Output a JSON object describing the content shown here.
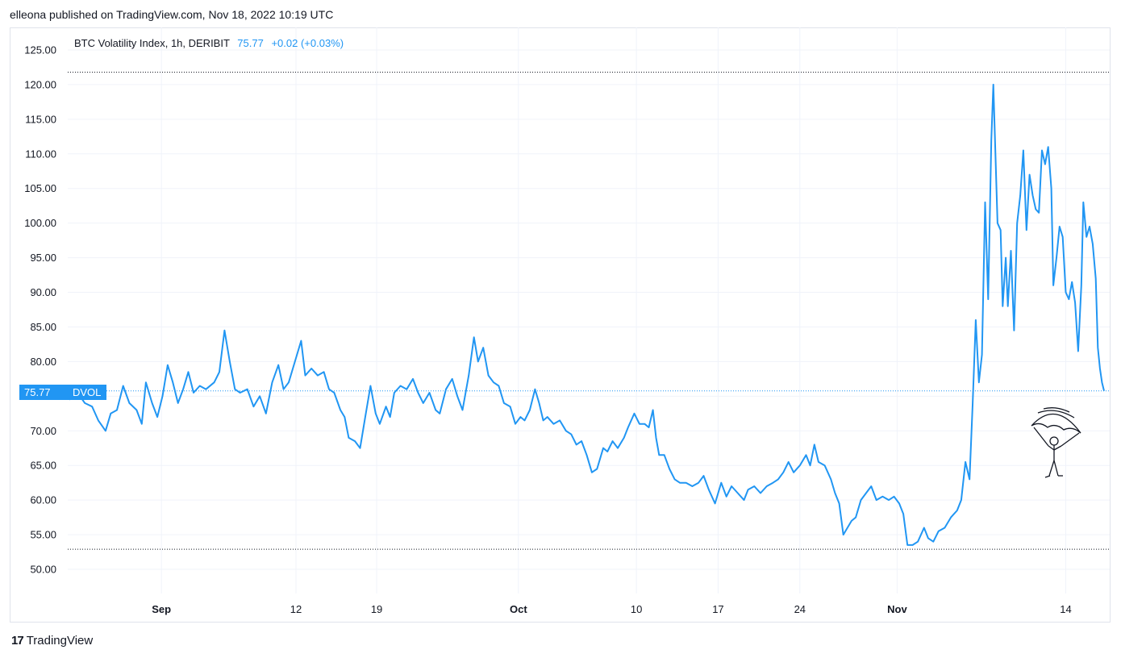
{
  "header": {
    "publisher_text": "elleona published on TradingView.com, Nov 18, 2022 10:19 UTC"
  },
  "legend": {
    "title": "BTC Volatility Index, 1h, DERIBIT",
    "last": "75.77",
    "change": "+0.02 (+0.03%)"
  },
  "price_tag": {
    "value": "75.77",
    "symbol": "DVOL"
  },
  "footer": {
    "brand": "TradingView",
    "logo_text": "17"
  },
  "colors": {
    "line": "#2196f3",
    "grid": "#f0f3fa",
    "text": "#131722"
  },
  "chart_data": {
    "type": "line",
    "title": "BTC Volatility Index, 1h, DERIBIT",
    "y_ticks": [
      "125.00",
      "120.00",
      "115.00",
      "110.00",
      "105.00",
      "100.00",
      "95.00",
      "90.00",
      "85.00",
      "80.00",
      "75.00",
      "70.00",
      "65.00",
      "60.00",
      "55.00",
      "50.00"
    ],
    "x_ticks": [
      {
        "label": "Sep",
        "pos": 0.089,
        "bold": true
      },
      {
        "label": "12",
        "pos": 0.219,
        "bold": false
      },
      {
        "label": "19",
        "pos": 0.297,
        "bold": false
      },
      {
        "label": "Oct",
        "pos": 0.434,
        "bold": true
      },
      {
        "label": "10",
        "pos": 0.548,
        "bold": false
      },
      {
        "label": "17",
        "pos": 0.627,
        "bold": false
      },
      {
        "label": "24",
        "pos": 0.706,
        "bold": false
      },
      {
        "label": "Nov",
        "pos": 0.8,
        "bold": true
      },
      {
        "label": "14",
        "pos": 0.963,
        "bold": false
      }
    ],
    "ylim": [
      50,
      125
    ],
    "high_line": 121.8,
    "low_line": 52.9,
    "last_value": 75.77,
    "series": [
      {
        "values": [
          [
            0.0,
            74.5
          ],
          [
            0.008,
            75.5
          ],
          [
            0.015,
            74.0
          ],
          [
            0.022,
            73.5
          ],
          [
            0.028,
            71.5
          ],
          [
            0.035,
            70.0
          ],
          [
            0.04,
            72.5
          ],
          [
            0.046,
            73.0
          ],
          [
            0.052,
            76.5
          ],
          [
            0.058,
            74.0
          ],
          [
            0.065,
            73.0
          ],
          [
            0.07,
            71.0
          ],
          [
            0.074,
            77.0
          ],
          [
            0.08,
            74.0
          ],
          [
            0.085,
            72.0
          ],
          [
            0.09,
            75.0
          ],
          [
            0.095,
            79.5
          ],
          [
            0.1,
            77.0
          ],
          [
            0.105,
            74.0
          ],
          [
            0.11,
            76.0
          ],
          [
            0.115,
            78.5
          ],
          [
            0.12,
            75.5
          ],
          [
            0.126,
            76.5
          ],
          [
            0.132,
            76.0
          ],
          [
            0.14,
            77.0
          ],
          [
            0.145,
            78.5
          ],
          [
            0.15,
            84.5
          ],
          [
            0.155,
            80.0
          ],
          [
            0.16,
            76.0
          ],
          [
            0.165,
            75.5
          ],
          [
            0.172,
            76.0
          ],
          [
            0.178,
            73.5
          ],
          [
            0.184,
            75.0
          ],
          [
            0.19,
            72.5
          ],
          [
            0.196,
            77.0
          ],
          [
            0.202,
            79.5
          ],
          [
            0.207,
            76.0
          ],
          [
            0.212,
            77.0
          ],
          [
            0.218,
            80.0
          ],
          [
            0.224,
            83.0
          ],
          [
            0.228,
            78.0
          ],
          [
            0.234,
            79.0
          ],
          [
            0.24,
            78.0
          ],
          [
            0.246,
            78.5
          ],
          [
            0.251,
            76.0
          ],
          [
            0.256,
            75.5
          ],
          [
            0.262,
            73.0
          ],
          [
            0.266,
            72.0
          ],
          [
            0.27,
            69.0
          ],
          [
            0.276,
            68.5
          ],
          [
            0.281,
            67.5
          ],
          [
            0.286,
            72.0
          ],
          [
            0.291,
            76.5
          ],
          [
            0.296,
            72.5
          ],
          [
            0.3,
            71.0
          ],
          [
            0.306,
            73.5
          ],
          [
            0.31,
            72.0
          ],
          [
            0.314,
            75.5
          ],
          [
            0.32,
            76.5
          ],
          [
            0.326,
            76.0
          ],
          [
            0.332,
            77.5
          ],
          [
            0.337,
            75.5
          ],
          [
            0.342,
            74.0
          ],
          [
            0.348,
            75.5
          ],
          [
            0.354,
            73.0
          ],
          [
            0.358,
            72.5
          ],
          [
            0.364,
            76.0
          ],
          [
            0.37,
            77.5
          ],
          [
            0.375,
            75.0
          ],
          [
            0.38,
            73.0
          ],
          [
            0.386,
            78.0
          ],
          [
            0.391,
            83.5
          ],
          [
            0.395,
            80.0
          ],
          [
            0.4,
            82.0
          ],
          [
            0.405,
            78.0
          ],
          [
            0.41,
            77.0
          ],
          [
            0.415,
            76.5
          ],
          [
            0.42,
            74.0
          ],
          [
            0.426,
            73.5
          ],
          [
            0.431,
            71.0
          ],
          [
            0.436,
            72.0
          ],
          [
            0.44,
            71.5
          ],
          [
            0.445,
            73.0
          ],
          [
            0.45,
            76.0
          ],
          [
            0.454,
            74.0
          ],
          [
            0.458,
            71.5
          ],
          [
            0.462,
            72.0
          ],
          [
            0.468,
            71.0
          ],
          [
            0.474,
            71.5
          ],
          [
            0.48,
            70.0
          ],
          [
            0.485,
            69.5
          ],
          [
            0.49,
            68.0
          ],
          [
            0.495,
            68.5
          ],
          [
            0.5,
            66.5
          ],
          [
            0.505,
            64.0
          ],
          [
            0.51,
            64.5
          ],
          [
            0.516,
            67.5
          ],
          [
            0.52,
            67.0
          ],
          [
            0.525,
            68.5
          ],
          [
            0.53,
            67.5
          ],
          [
            0.536,
            69.0
          ],
          [
            0.54,
            70.5
          ],
          [
            0.546,
            72.5
          ],
          [
            0.551,
            71.0
          ],
          [
            0.556,
            71.0
          ],
          [
            0.56,
            70.5
          ],
          [
            0.564,
            73.0
          ],
          [
            0.567,
            69.0
          ],
          [
            0.57,
            66.5
          ],
          [
            0.575,
            66.5
          ],
          [
            0.58,
            64.5
          ],
          [
            0.585,
            63.0
          ],
          [
            0.59,
            62.5
          ],
          [
            0.596,
            62.5
          ],
          [
            0.602,
            62.0
          ],
          [
            0.608,
            62.5
          ],
          [
            0.613,
            63.5
          ],
          [
            0.618,
            61.5
          ],
          [
            0.624,
            59.5
          ],
          [
            0.63,
            62.5
          ],
          [
            0.635,
            60.5
          ],
          [
            0.64,
            62.0
          ],
          [
            0.646,
            61.0
          ],
          [
            0.652,
            60.0
          ],
          [
            0.656,
            61.5
          ],
          [
            0.662,
            62.0
          ],
          [
            0.668,
            61.0
          ],
          [
            0.674,
            62.0
          ],
          [
            0.68,
            62.5
          ],
          [
            0.685,
            63.0
          ],
          [
            0.69,
            64.0
          ],
          [
            0.695,
            65.5
          ],
          [
            0.7,
            64.0
          ],
          [
            0.706,
            65.0
          ],
          [
            0.712,
            66.5
          ],
          [
            0.716,
            65.0
          ],
          [
            0.72,
            68.0
          ],
          [
            0.724,
            65.5
          ],
          [
            0.73,
            65.0
          ],
          [
            0.736,
            63.0
          ],
          [
            0.74,
            61.0
          ],
          [
            0.744,
            59.5
          ],
          [
            0.748,
            55.0
          ],
          [
            0.752,
            56.0
          ],
          [
            0.756,
            57.0
          ],
          [
            0.76,
            57.5
          ],
          [
            0.765,
            60.0
          ],
          [
            0.77,
            61.0
          ],
          [
            0.775,
            62.0
          ],
          [
            0.78,
            60.0
          ],
          [
            0.786,
            60.5
          ],
          [
            0.792,
            60.0
          ],
          [
            0.797,
            60.5
          ],
          [
            0.802,
            59.5
          ],
          [
            0.806,
            58.0
          ],
          [
            0.81,
            53.5
          ],
          [
            0.815,
            53.5
          ],
          [
            0.82,
            54.0
          ],
          [
            0.826,
            56.0
          ],
          [
            0.83,
            54.5
          ],
          [
            0.835,
            54.0
          ],
          [
            0.84,
            55.5
          ],
          [
            0.846,
            56.0
          ],
          [
            0.852,
            57.5
          ],
          [
            0.858,
            58.5
          ],
          [
            0.862,
            60.0
          ],
          [
            0.866,
            65.5
          ],
          [
            0.87,
            63.0
          ],
          [
            0.873,
            74.0
          ],
          [
            0.876,
            86.0
          ],
          [
            0.879,
            77.0
          ],
          [
            0.882,
            81.0
          ],
          [
            0.885,
            103.0
          ],
          [
            0.888,
            89.0
          ],
          [
            0.891,
            112.0
          ],
          [
            0.893,
            120.0
          ],
          [
            0.895,
            110.0
          ],
          [
            0.897,
            100.0
          ],
          [
            0.9,
            99.0
          ],
          [
            0.902,
            88.0
          ],
          [
            0.905,
            95.0
          ],
          [
            0.907,
            88.0
          ],
          [
            0.91,
            96.0
          ],
          [
            0.913,
            84.5
          ],
          [
            0.916,
            100.0
          ],
          [
            0.919,
            104.0
          ],
          [
            0.922,
            110.5
          ],
          [
            0.925,
            99.0
          ],
          [
            0.928,
            107.0
          ],
          [
            0.931,
            104.0
          ],
          [
            0.934,
            102.0
          ],
          [
            0.937,
            101.5
          ],
          [
            0.94,
            110.5
          ],
          [
            0.943,
            108.5
          ],
          [
            0.946,
            111.0
          ],
          [
            0.949,
            105.0
          ],
          [
            0.951,
            91.0
          ],
          [
            0.954,
            95.0
          ],
          [
            0.957,
            99.5
          ],
          [
            0.96,
            98.0
          ],
          [
            0.963,
            90.0
          ],
          [
            0.966,
            89.0
          ],
          [
            0.969,
            91.5
          ],
          [
            0.972,
            88.5
          ],
          [
            0.975,
            81.5
          ],
          [
            0.978,
            91.0
          ],
          [
            0.98,
            103.0
          ],
          [
            0.983,
            98.0
          ],
          [
            0.986,
            99.5
          ],
          [
            0.989,
            97.0
          ],
          [
            0.992,
            92.0
          ],
          [
            0.994,
            82.0
          ],
          [
            0.996,
            79.0
          ],
          [
            0.998,
            77.0
          ],
          [
            1.0,
            75.77
          ]
        ]
      }
    ]
  }
}
